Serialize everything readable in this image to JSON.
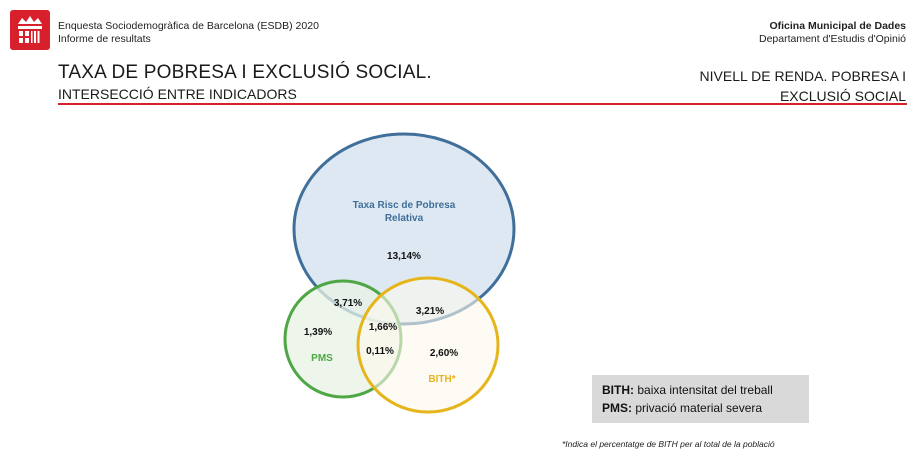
{
  "header": {
    "left_line1": "Enquesta Sociodemogràfica de Barcelona (ESDB) 2020",
    "left_line2": "Informe de resultats",
    "org": "Oficina Municipal de Dades",
    "dept": "Departament d'Estudis d'Opinió"
  },
  "title": "TAXA DE POBRESA I EXCLUSIÓ SOCIAL.",
  "subtitle": "INTERSECCIÓ ENTRE INDICADORS",
  "section": {
    "line1": "NIVELL DE RENDA. POBRESA I",
    "line2": "EXCLUSIÓ SOCIAL"
  },
  "venn": {
    "sets": [
      {
        "name": "Taxa Risc de Pobresa Relativa",
        "label_line1": "Taxa Risc de Pobresa",
        "label_line2": "Relativa",
        "color": "#3f6f9a",
        "fill": "#dde8f2"
      },
      {
        "name": "PMS",
        "label": "PMS",
        "color": "#4ea645",
        "fill": "#e8f3e6"
      },
      {
        "name": "BITH",
        "label": "BITH*",
        "color": "#e6b41b",
        "fill": "#fdf9ec"
      }
    ],
    "regions": {
      "pobresa_only": "13,14%",
      "pobresa_pms": "3,71%",
      "pobresa_bith": "3,21%",
      "all_three": "1,66%",
      "pms_only": "1,39%",
      "pms_bith": "0,11%",
      "bith_only": "2,60%"
    }
  },
  "legend": {
    "bith_abbr": "BITH:",
    "bith_desc": "baixa intensitat del treball",
    "pms_abbr": "PMS:",
    "pms_desc": "privació material severa"
  },
  "footnote": "*Indica el percentatge de BITH per al total de la població",
  "colors": {
    "accent": "#d8202c"
  }
}
